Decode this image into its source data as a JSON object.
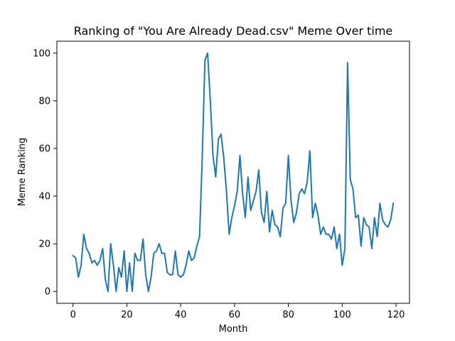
{
  "chart_data": {
    "type": "line",
    "title": "Ranking of \"You Are Already Dead.csv\" Meme Over time",
    "xlabel": "Month",
    "ylabel": "Meme Ranking",
    "xlim": [
      -6,
      125
    ],
    "ylim": [
      -5,
      105
    ],
    "x_ticks": [
      0,
      20,
      40,
      60,
      80,
      100,
      120
    ],
    "y_ticks": [
      0,
      20,
      40,
      60,
      80,
      100
    ],
    "grid": false,
    "line_color": "#1f77b4",
    "series": [
      {
        "x": [
          0,
          1,
          2,
          3,
          4,
          5,
          6,
          7,
          8,
          9,
          10,
          11,
          12,
          13,
          14,
          15,
          16,
          17,
          18,
          19,
          20,
          21,
          22,
          23,
          24,
          25,
          26,
          27,
          28,
          29,
          30,
          31,
          32,
          33,
          34,
          35,
          36,
          37,
          38,
          39,
          40,
          41,
          42,
          43,
          44,
          45,
          46,
          47,
          48,
          49,
          50,
          51,
          52,
          53,
          54,
          55,
          56,
          57,
          58,
          59,
          60,
          61,
          62,
          63,
          64,
          65,
          66,
          67,
          68,
          69,
          70,
          71,
          72,
          73,
          74,
          75,
          76,
          77,
          78,
          79,
          80,
          81,
          82,
          83,
          84,
          85,
          86,
          87,
          88,
          89,
          90,
          91,
          92,
          93,
          94,
          95,
          96,
          97,
          98,
          99,
          100,
          101,
          102,
          103,
          104,
          105,
          106,
          107,
          108,
          109,
          110,
          111,
          112,
          113,
          114,
          115,
          116,
          117,
          118,
          119
        ],
        "values": [
          15,
          14,
          6,
          11,
          24,
          18,
          16,
          12,
          13,
          11,
          13,
          18,
          5,
          0,
          20,
          11,
          0,
          10,
          6,
          17,
          0,
          12,
          0,
          16,
          13,
          13,
          22,
          7,
          0,
          6,
          16,
          17,
          20,
          16,
          16,
          8,
          7,
          7,
          17,
          7,
          6,
          7,
          11,
          17,
          13,
          14,
          19,
          23,
          56,
          97,
          100,
          80,
          57,
          48,
          64,
          66,
          56,
          42,
          24,
          31,
          36,
          42,
          57,
          41,
          31,
          48,
          34,
          38,
          42,
          51,
          33,
          29,
          42,
          25,
          34,
          28,
          27,
          23,
          35,
          37,
          57,
          38,
          29,
          33,
          41,
          43,
          41,
          46,
          59,
          31,
          37,
          32,
          24,
          27,
          24,
          24,
          22,
          27,
          18,
          24,
          11,
          18,
          96,
          47,
          43,
          31,
          32,
          19,
          31,
          28,
          27,
          18,
          31,
          23,
          37,
          30,
          28,
          27,
          30,
          37
        ]
      }
    ]
  }
}
